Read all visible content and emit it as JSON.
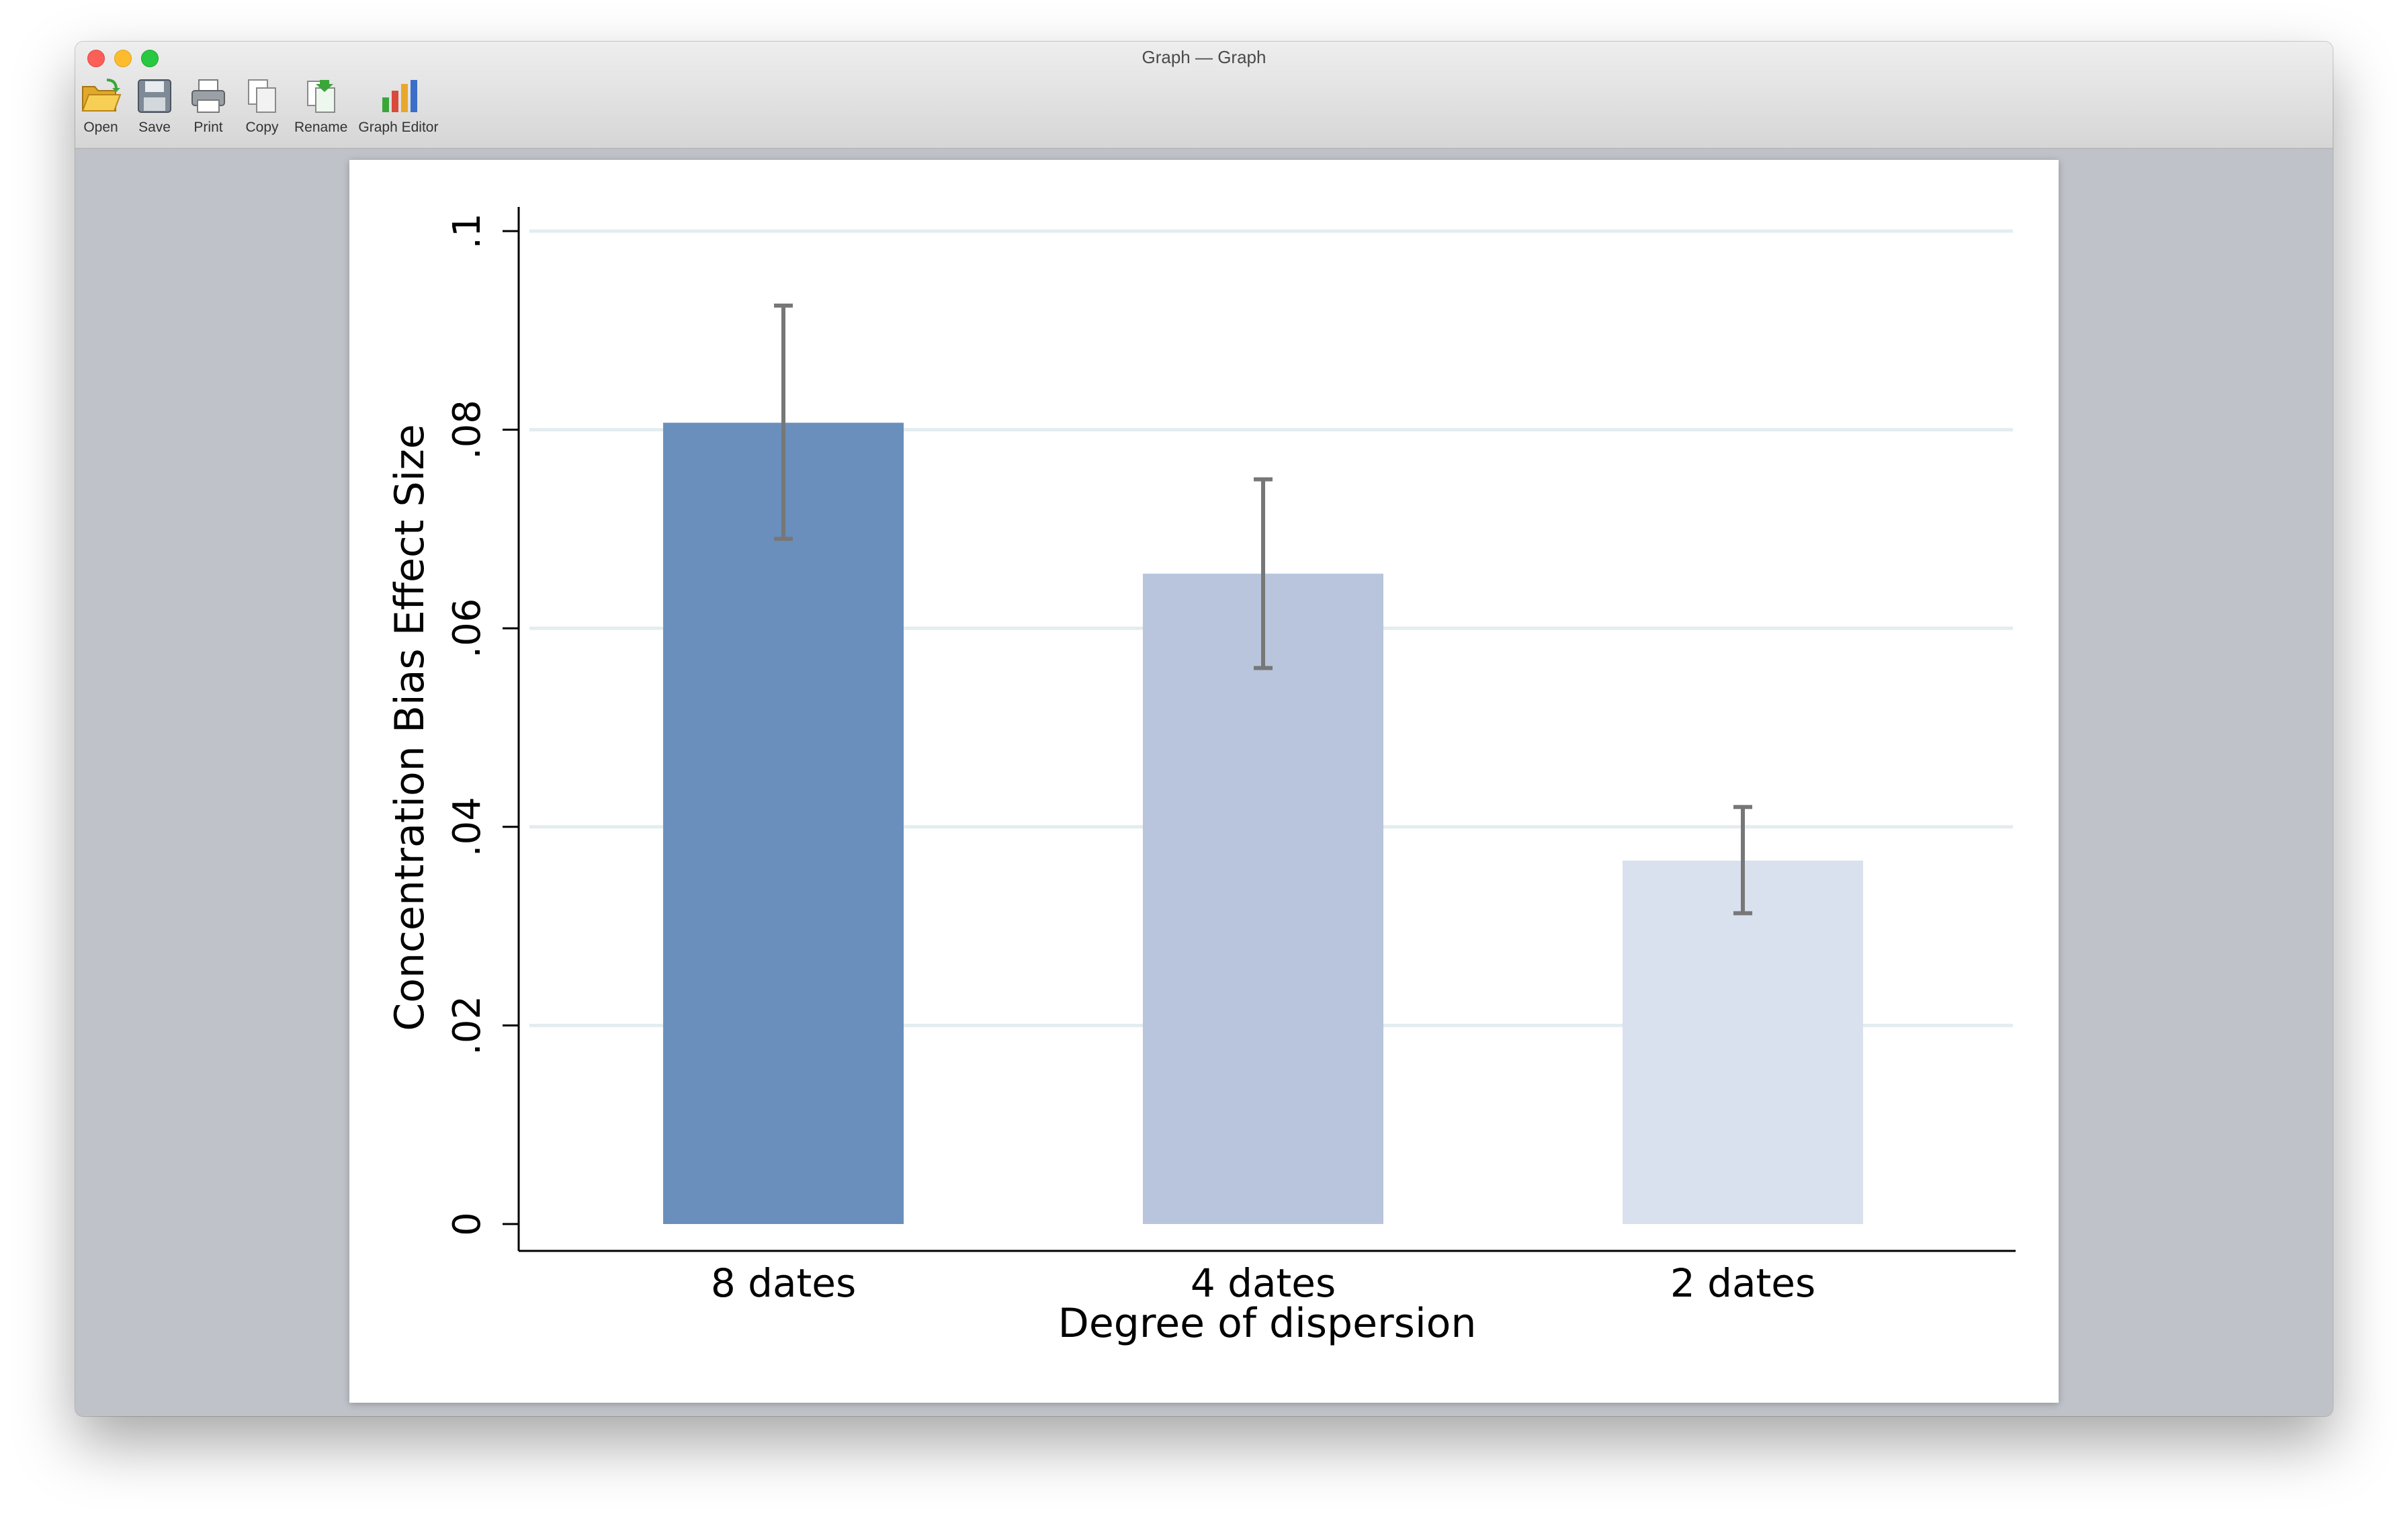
{
  "window": {
    "title": "Graph — Graph"
  },
  "toolbar": {
    "items": [
      {
        "label": "Open",
        "icon": "open-folder-icon"
      },
      {
        "label": "Save",
        "icon": "save-disk-icon"
      },
      {
        "label": "Print",
        "icon": "printer-icon"
      },
      {
        "label": "Copy",
        "icon": "copy-icon"
      },
      {
        "label": "Rename",
        "icon": "rename-icon"
      },
      {
        "label": "Graph Editor",
        "icon": "graph-editor-icon"
      }
    ]
  },
  "chart_data": {
    "type": "bar",
    "categories": [
      "8 dates",
      "4 dates",
      "2 dates"
    ],
    "values": [
      0.0807,
      0.0655,
      0.0366
    ],
    "error_bars": [
      {
        "low": 0.069,
        "high": 0.0925
      },
      {
        "low": 0.056,
        "high": 0.075
      },
      {
        "low": 0.0313,
        "high": 0.042
      }
    ],
    "bar_colors": [
      "#6a8fbc",
      "#b8c5dd",
      "#d9e0ee"
    ],
    "error_color": "#777777",
    "grid_color": "#e3edef",
    "xlabel": "Degree of dispersion",
    "ylabel": "Concentration Bias Effect Size",
    "ylim": [
      0,
      0.1
    ],
    "yticks": [
      0,
      0.02,
      0.04,
      0.06,
      0.08,
      0.1
    ],
    "ytick_labels": [
      "0",
      ".02",
      ".04",
      ".06",
      ".08",
      ".1"
    ],
    "grid": true
  }
}
